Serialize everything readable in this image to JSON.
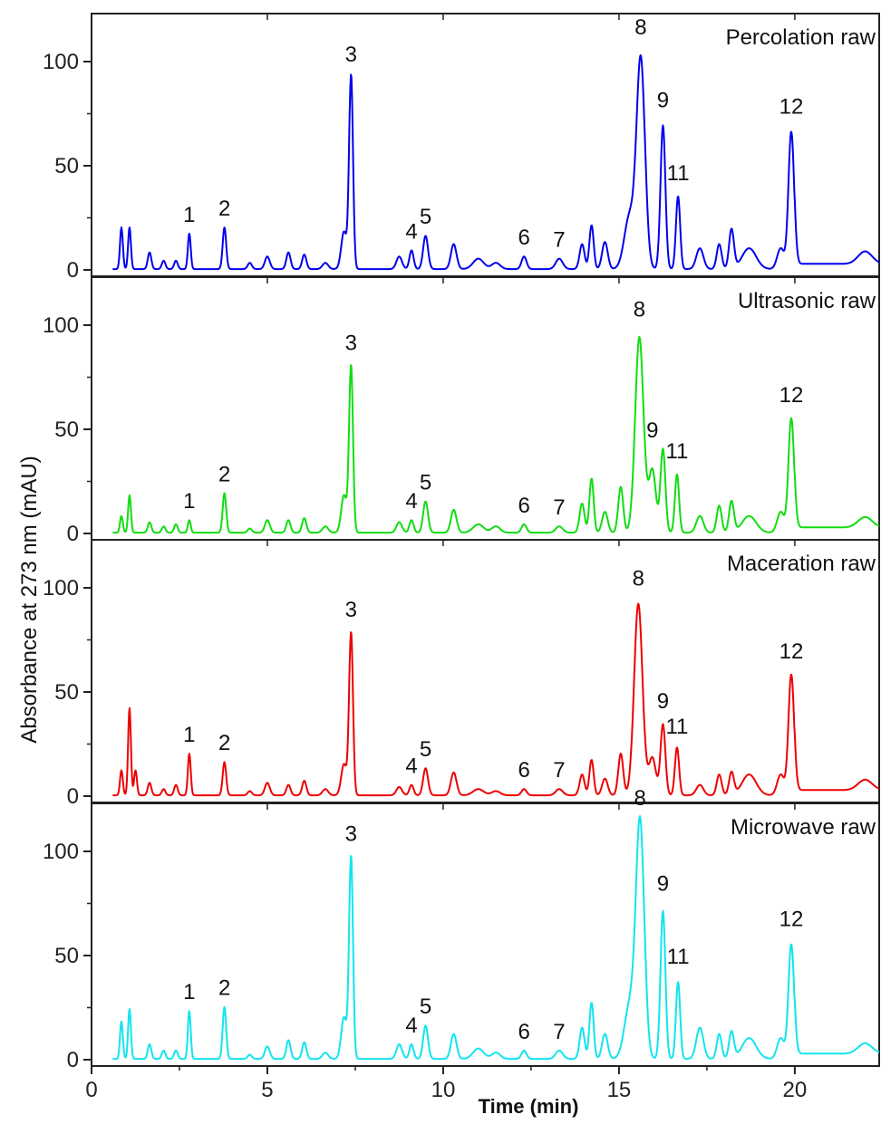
{
  "chart_data": {
    "type": "line",
    "xlabel": "Time (min)",
    "ylabel": "Absorbance at 273 nm (mAU)",
    "xlim": [
      0,
      22.4
    ],
    "ylim": [
      0,
      125
    ],
    "x_ticks": [
      0,
      5,
      10,
      15,
      20
    ],
    "y_ticks": [
      0,
      50,
      100
    ],
    "grid": false,
    "panels": [
      {
        "title": "Percolation raw",
        "color": "#0000ee",
        "peaks": [
          {
            "t": 0.85,
            "h": 20,
            "w": 0.04
          },
          {
            "t": 1.08,
            "h": 20,
            "w": 0.04
          },
          {
            "t": 1.65,
            "h": 8,
            "w": 0.05
          },
          {
            "t": 2.05,
            "h": 4,
            "w": 0.05
          },
          {
            "t": 2.4,
            "h": 4,
            "w": 0.05
          },
          {
            "t": 2.78,
            "h": 17,
            "w": 0.04
          },
          {
            "t": 3.78,
            "h": 20,
            "w": 0.05
          },
          {
            "t": 4.5,
            "h": 3,
            "w": 0.06
          },
          {
            "t": 5.0,
            "h": 6,
            "w": 0.07
          },
          {
            "t": 5.6,
            "h": 8,
            "w": 0.06
          },
          {
            "t": 6.05,
            "h": 7,
            "w": 0.06
          },
          {
            "t": 6.65,
            "h": 3,
            "w": 0.08
          },
          {
            "t": 7.18,
            "h": 18,
            "w": 0.08
          },
          {
            "t": 7.38,
            "h": 93,
            "w": 0.055
          },
          {
            "t": 8.75,
            "h": 6,
            "w": 0.08
          },
          {
            "t": 9.1,
            "h": 9,
            "w": 0.06
          },
          {
            "t": 9.5,
            "h": 16,
            "w": 0.07
          },
          {
            "t": 10.3,
            "h": 12,
            "w": 0.08
          },
          {
            "t": 11.0,
            "h": 5,
            "w": 0.15
          },
          {
            "t": 11.5,
            "h": 3,
            "w": 0.12
          },
          {
            "t": 12.3,
            "h": 6,
            "w": 0.07
          },
          {
            "t": 13.3,
            "h": 5,
            "w": 0.1
          },
          {
            "t": 13.95,
            "h": 12,
            "w": 0.07
          },
          {
            "t": 14.22,
            "h": 21,
            "w": 0.06
          },
          {
            "t": 14.6,
            "h": 13,
            "w": 0.08
          },
          {
            "t": 15.3,
            "h": 25,
            "w": 0.15
          },
          {
            "t": 15.62,
            "h": 100,
            "w": 0.12
          },
          {
            "t": 16.25,
            "h": 69,
            "w": 0.07
          },
          {
            "t": 16.68,
            "h": 35,
            "w": 0.06
          },
          {
            "t": 17.3,
            "h": 10,
            "w": 0.1
          },
          {
            "t": 17.85,
            "h": 12,
            "w": 0.07
          },
          {
            "t": 18.2,
            "h": 19,
            "w": 0.07
          },
          {
            "t": 18.7,
            "h": 10,
            "w": 0.2
          },
          {
            "t": 19.6,
            "h": 10,
            "w": 0.1
          },
          {
            "t": 19.9,
            "h": 66,
            "w": 0.08
          },
          {
            "t": 22.0,
            "h": 6,
            "w": 0.2
          }
        ],
        "peak_labels": [
          {
            "text": "1",
            "t": 2.78,
            "h": 17
          },
          {
            "text": "2",
            "t": 3.78,
            "h": 20
          },
          {
            "text": "3",
            "t": 7.38,
            "h": 94
          },
          {
            "text": "4",
            "t": 9.1,
            "h": 9
          },
          {
            "text": "5",
            "t": 9.5,
            "h": 16
          },
          {
            "text": "6",
            "t": 12.3,
            "h": 6
          },
          {
            "text": "7",
            "t": 13.3,
            "h": 5
          },
          {
            "text": "8",
            "t": 15.62,
            "h": 107
          },
          {
            "text": "9",
            "t": 16.25,
            "h": 72
          },
          {
            "text": "11",
            "t": 16.68,
            "h": 37
          },
          {
            "text": "12",
            "t": 19.9,
            "h": 69
          }
        ]
      },
      {
        "title": "Ultrasonic raw",
        "color": "#11dd11",
        "peaks": [
          {
            "t": 0.85,
            "h": 8,
            "w": 0.04
          },
          {
            "t": 1.08,
            "h": 18,
            "w": 0.04
          },
          {
            "t": 1.65,
            "h": 5,
            "w": 0.05
          },
          {
            "t": 2.05,
            "h": 3,
            "w": 0.05
          },
          {
            "t": 2.4,
            "h": 4,
            "w": 0.05
          },
          {
            "t": 2.78,
            "h": 6,
            "w": 0.04
          },
          {
            "t": 3.78,
            "h": 19,
            "w": 0.05
          },
          {
            "t": 4.5,
            "h": 2,
            "w": 0.06
          },
          {
            "t": 5.0,
            "h": 6,
            "w": 0.07
          },
          {
            "t": 5.6,
            "h": 6,
            "w": 0.06
          },
          {
            "t": 6.05,
            "h": 7,
            "w": 0.06
          },
          {
            "t": 6.65,
            "h": 3,
            "w": 0.08
          },
          {
            "t": 7.18,
            "h": 18,
            "w": 0.08
          },
          {
            "t": 7.38,
            "h": 80,
            "w": 0.055
          },
          {
            "t": 8.75,
            "h": 5,
            "w": 0.08
          },
          {
            "t": 9.1,
            "h": 6,
            "w": 0.06
          },
          {
            "t": 9.5,
            "h": 15,
            "w": 0.07
          },
          {
            "t": 10.3,
            "h": 11,
            "w": 0.08
          },
          {
            "t": 11.0,
            "h": 4,
            "w": 0.15
          },
          {
            "t": 11.5,
            "h": 3,
            "w": 0.12
          },
          {
            "t": 12.3,
            "h": 4,
            "w": 0.07
          },
          {
            "t": 13.3,
            "h": 3,
            "w": 0.1
          },
          {
            "t": 13.95,
            "h": 14,
            "w": 0.07
          },
          {
            "t": 14.22,
            "h": 26,
            "w": 0.06
          },
          {
            "t": 14.6,
            "h": 10,
            "w": 0.08
          },
          {
            "t": 15.05,
            "h": 22,
            "w": 0.07
          },
          {
            "t": 15.58,
            "h": 94,
            "w": 0.12
          },
          {
            "t": 15.95,
            "h": 30,
            "w": 0.1
          },
          {
            "t": 16.25,
            "h": 40,
            "w": 0.07
          },
          {
            "t": 16.65,
            "h": 28,
            "w": 0.06
          },
          {
            "t": 17.3,
            "h": 8,
            "w": 0.1
          },
          {
            "t": 17.85,
            "h": 13,
            "w": 0.07
          },
          {
            "t": 18.2,
            "h": 15,
            "w": 0.07
          },
          {
            "t": 18.7,
            "h": 8,
            "w": 0.2
          },
          {
            "t": 19.6,
            "h": 10,
            "w": 0.1
          },
          {
            "t": 19.9,
            "h": 55,
            "w": 0.08
          },
          {
            "t": 22.0,
            "h": 5,
            "w": 0.2
          }
        ],
        "peak_labels": [
          {
            "text": "1",
            "t": 2.78,
            "h": 6
          },
          {
            "text": "2",
            "t": 3.78,
            "h": 19
          },
          {
            "text": "3",
            "t": 7.38,
            "h": 82
          },
          {
            "text": "4",
            "t": 9.1,
            "h": 6
          },
          {
            "text": "5",
            "t": 9.5,
            "h": 15
          },
          {
            "text": "6",
            "t": 12.3,
            "h": 4
          },
          {
            "text": "7",
            "t": 13.3,
            "h": 3
          },
          {
            "text": "8",
            "t": 15.58,
            "h": 98
          },
          {
            "text": "9",
            "t": 15.95,
            "h": 40
          },
          {
            "text": "11",
            "t": 16.65,
            "h": 30
          },
          {
            "text": "12",
            "t": 19.9,
            "h": 57
          }
        ]
      },
      {
        "title": "Maceration raw",
        "color": "#ee0000",
        "peaks": [
          {
            "t": 0.85,
            "h": 12,
            "w": 0.04
          },
          {
            "t": 1.08,
            "h": 42,
            "w": 0.04
          },
          {
            "t": 1.25,
            "h": 12,
            "w": 0.04
          },
          {
            "t": 1.65,
            "h": 6,
            "w": 0.05
          },
          {
            "t": 2.05,
            "h": 3,
            "w": 0.05
          },
          {
            "t": 2.4,
            "h": 5,
            "w": 0.05
          },
          {
            "t": 2.78,
            "h": 20,
            "w": 0.04
          },
          {
            "t": 3.78,
            "h": 16,
            "w": 0.05
          },
          {
            "t": 4.5,
            "h": 2,
            "w": 0.06
          },
          {
            "t": 5.0,
            "h": 6,
            "w": 0.07
          },
          {
            "t": 5.6,
            "h": 5,
            "w": 0.06
          },
          {
            "t": 6.05,
            "h": 7,
            "w": 0.06
          },
          {
            "t": 6.65,
            "h": 3,
            "w": 0.08
          },
          {
            "t": 7.18,
            "h": 15,
            "w": 0.08
          },
          {
            "t": 7.38,
            "h": 78,
            "w": 0.055
          },
          {
            "t": 8.75,
            "h": 4,
            "w": 0.08
          },
          {
            "t": 9.1,
            "h": 5,
            "w": 0.06
          },
          {
            "t": 9.5,
            "h": 13,
            "w": 0.07
          },
          {
            "t": 10.3,
            "h": 11,
            "w": 0.08
          },
          {
            "t": 11.0,
            "h": 3,
            "w": 0.15
          },
          {
            "t": 11.5,
            "h": 2,
            "w": 0.12
          },
          {
            "t": 12.3,
            "h": 3,
            "w": 0.07
          },
          {
            "t": 13.3,
            "h": 3,
            "w": 0.1
          },
          {
            "t": 13.95,
            "h": 10,
            "w": 0.07
          },
          {
            "t": 14.22,
            "h": 17,
            "w": 0.06
          },
          {
            "t": 14.6,
            "h": 8,
            "w": 0.08
          },
          {
            "t": 15.05,
            "h": 20,
            "w": 0.07
          },
          {
            "t": 15.55,
            "h": 92,
            "w": 0.12
          },
          {
            "t": 15.95,
            "h": 18,
            "w": 0.1
          },
          {
            "t": 16.25,
            "h": 34,
            "w": 0.07
          },
          {
            "t": 16.65,
            "h": 23,
            "w": 0.06
          },
          {
            "t": 17.3,
            "h": 5,
            "w": 0.1
          },
          {
            "t": 17.85,
            "h": 10,
            "w": 0.07
          },
          {
            "t": 18.2,
            "h": 11,
            "w": 0.07
          },
          {
            "t": 18.7,
            "h": 10,
            "w": 0.2
          },
          {
            "t": 19.6,
            "h": 10,
            "w": 0.1
          },
          {
            "t": 19.9,
            "h": 58,
            "w": 0.08
          },
          {
            "t": 22.0,
            "h": 5,
            "w": 0.2
          }
        ],
        "peak_labels": [
          {
            "text": "1",
            "t": 2.78,
            "h": 20
          },
          {
            "text": "2",
            "t": 3.78,
            "h": 16
          },
          {
            "text": "3",
            "t": 7.38,
            "h": 80
          },
          {
            "text": "4",
            "t": 9.1,
            "h": 5
          },
          {
            "text": "5",
            "t": 9.5,
            "h": 13
          },
          {
            "text": "6",
            "t": 12.3,
            "h": 3
          },
          {
            "text": "7",
            "t": 13.3,
            "h": 3
          },
          {
            "text": "8",
            "t": 15.55,
            "h": 95
          },
          {
            "text": "9",
            "t": 16.25,
            "h": 36
          },
          {
            "text": "11",
            "t": 16.65,
            "h": 24
          },
          {
            "text": "12",
            "t": 19.9,
            "h": 60
          }
        ]
      },
      {
        "title": "Microwave raw",
        "color": "#11e5ee",
        "peaks": [
          {
            "t": 0.85,
            "h": 18,
            "w": 0.04
          },
          {
            "t": 1.08,
            "h": 24,
            "w": 0.04
          },
          {
            "t": 1.65,
            "h": 7,
            "w": 0.05
          },
          {
            "t": 2.05,
            "h": 4,
            "w": 0.05
          },
          {
            "t": 2.4,
            "h": 4,
            "w": 0.05
          },
          {
            "t": 2.78,
            "h": 23,
            "w": 0.04
          },
          {
            "t": 3.78,
            "h": 25,
            "w": 0.05
          },
          {
            "t": 4.5,
            "h": 2,
            "w": 0.06
          },
          {
            "t": 5.0,
            "h": 6,
            "w": 0.07
          },
          {
            "t": 5.6,
            "h": 9,
            "w": 0.06
          },
          {
            "t": 6.05,
            "h": 8,
            "w": 0.06
          },
          {
            "t": 6.65,
            "h": 3,
            "w": 0.08
          },
          {
            "t": 7.18,
            "h": 20,
            "w": 0.08
          },
          {
            "t": 7.38,
            "h": 97,
            "w": 0.055
          },
          {
            "t": 8.75,
            "h": 7,
            "w": 0.08
          },
          {
            "t": 9.1,
            "h": 7,
            "w": 0.06
          },
          {
            "t": 9.5,
            "h": 16,
            "w": 0.07
          },
          {
            "t": 10.3,
            "h": 12,
            "w": 0.08
          },
          {
            "t": 11.0,
            "h": 5,
            "w": 0.15
          },
          {
            "t": 11.5,
            "h": 3,
            "w": 0.12
          },
          {
            "t": 12.3,
            "h": 4,
            "w": 0.07
          },
          {
            "t": 13.3,
            "h": 4,
            "w": 0.1
          },
          {
            "t": 13.95,
            "h": 15,
            "w": 0.07
          },
          {
            "t": 14.22,
            "h": 27,
            "w": 0.06
          },
          {
            "t": 14.6,
            "h": 12,
            "w": 0.08
          },
          {
            "t": 15.3,
            "h": 25,
            "w": 0.15
          },
          {
            "t": 15.6,
            "h": 113,
            "w": 0.12
          },
          {
            "t": 16.25,
            "h": 71,
            "w": 0.07
          },
          {
            "t": 16.68,
            "h": 37,
            "w": 0.06
          },
          {
            "t": 17.3,
            "h": 15,
            "w": 0.1
          },
          {
            "t": 17.85,
            "h": 12,
            "w": 0.07
          },
          {
            "t": 18.2,
            "h": 13,
            "w": 0.07
          },
          {
            "t": 18.7,
            "h": 10,
            "w": 0.2
          },
          {
            "t": 19.6,
            "h": 10,
            "w": 0.1
          },
          {
            "t": 19.9,
            "h": 55,
            "w": 0.08
          },
          {
            "t": 22.0,
            "h": 5,
            "w": 0.2
          }
        ],
        "peak_labels": [
          {
            "text": "1",
            "t": 2.78,
            "h": 23
          },
          {
            "text": "2",
            "t": 3.78,
            "h": 25
          },
          {
            "text": "3",
            "t": 7.38,
            "h": 99
          },
          {
            "text": "4",
            "t": 9.1,
            "h": 7
          },
          {
            "text": "5",
            "t": 9.5,
            "h": 16
          },
          {
            "text": "6",
            "t": 12.3,
            "h": 4
          },
          {
            "text": "7",
            "t": 13.3,
            "h": 4
          },
          {
            "text": "8",
            "t": 15.6,
            "h": 116
          },
          {
            "text": "9",
            "t": 16.25,
            "h": 75
          },
          {
            "text": "11",
            "t": 16.68,
            "h": 40
          },
          {
            "text": "12",
            "t": 19.9,
            "h": 58
          }
        ]
      }
    ]
  }
}
